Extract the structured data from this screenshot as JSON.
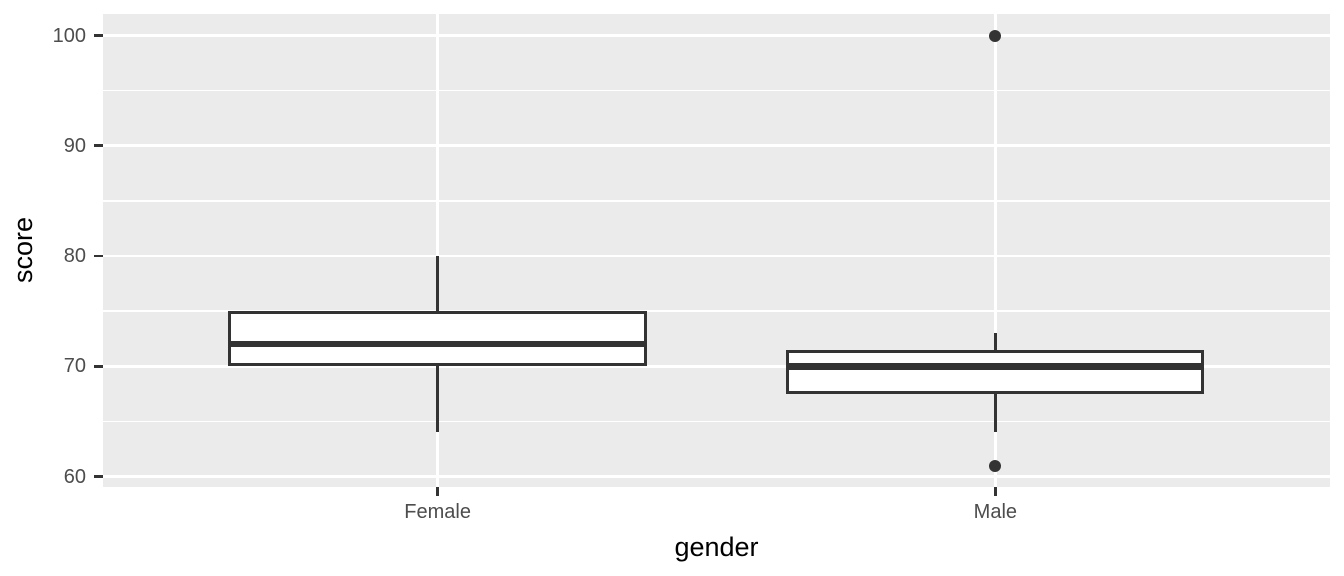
{
  "chart_data": {
    "type": "boxplot",
    "title": "",
    "xlabel": "gender",
    "ylabel": "score",
    "categories": [
      "Female",
      "Male"
    ],
    "y_ticks": [
      60,
      70,
      80,
      90,
      100
    ],
    "y_minor_gridlines": [
      65,
      75,
      85,
      95
    ],
    "ylim": [
      59,
      102
    ],
    "grid": "on",
    "legend": "none",
    "box_width_fraction": 0.75,
    "series": [
      {
        "name": "Female",
        "whisker_low": 64,
        "q1": 70,
        "median": 72,
        "q3": 75,
        "whisker_high": 80,
        "outliers": []
      },
      {
        "name": "Male",
        "whisker_low": 64,
        "q1": 67.5,
        "median": 70,
        "q3": 71.5,
        "whisker_high": 73,
        "outliers": [
          61,
          100
        ]
      }
    ]
  },
  "colors": {
    "figure_bg": "#FFFFFF",
    "panel_bg": "#EBEBEB",
    "gridline": "#FFFFFF",
    "box_fill": "#FFFFFF",
    "box_stroke": "#333333",
    "tick_mark": "#333333",
    "tick_label_color": "#4D4D4D",
    "axis_title_color": "#000000"
  }
}
